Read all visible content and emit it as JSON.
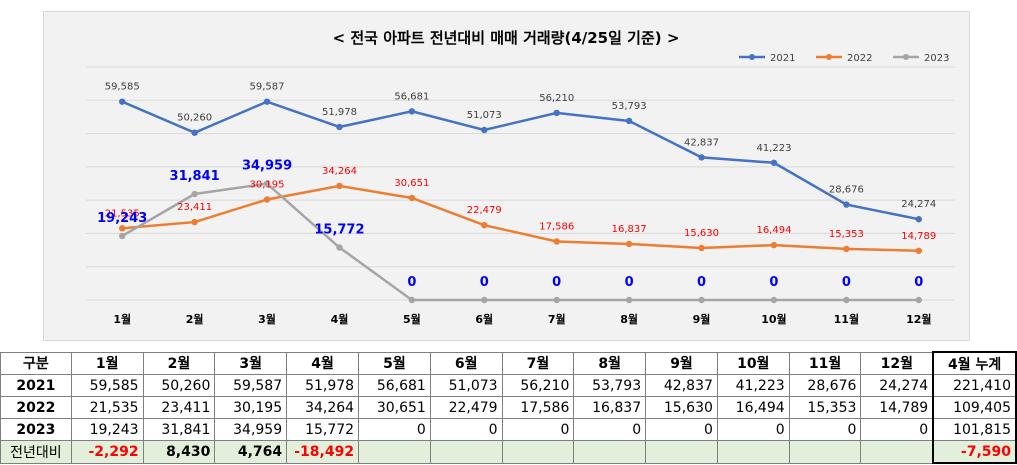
{
  "chart_data": {
    "type": "line",
    "title": "< 전국 아파트 전년대비 매매 거래량(4/25일 기준) >",
    "categories": [
      "1월",
      "2월",
      "3월",
      "4월",
      "5월",
      "6월",
      "7월",
      "8월",
      "9월",
      "10월",
      "11월",
      "12월"
    ],
    "series": [
      {
        "name": "2021",
        "color": "#4472c4",
        "values": [
          59585,
          50260,
          59587,
          51978,
          56681,
          51073,
          56210,
          53793,
          42837,
          41223,
          28676,
          24274
        ],
        "labels": [
          "59,585",
          "50,260",
          "59,587",
          "51,978",
          "56,681",
          "51,073",
          "56,210",
          "53,793",
          "42,837",
          "41,223",
          "28,676",
          "24,274"
        ]
      },
      {
        "name": "2022",
        "color": "#ed7d31",
        "values": [
          21535,
          23411,
          30195,
          34264,
          30651,
          22479,
          17586,
          16837,
          15630,
          16494,
          15353,
          14789
        ],
        "labels": [
          "21,535",
          "23,411",
          "30,195",
          "34,264",
          "30,651",
          "22,479",
          "17,586",
          "16,837",
          "15,630",
          "16,494",
          "15,353",
          "14,789"
        ]
      },
      {
        "name": "2023",
        "color": "#a5a5a5",
        "values": [
          19243,
          31841,
          34959,
          15772,
          0,
          0,
          0,
          0,
          0,
          0,
          0,
          0
        ],
        "labels": [
          "19,243",
          "31,841",
          "34,959",
          "15,772",
          "0",
          "0",
          "0",
          "0",
          "0",
          "0",
          "0",
          "0"
        ]
      }
    ],
    "ylim": [
      0,
      70000
    ],
    "grid": true,
    "legend_position": "top-right"
  },
  "table": {
    "header": [
      "구분",
      "1월",
      "2월",
      "3월",
      "4월",
      "5월",
      "6월",
      "7월",
      "8월",
      "9월",
      "10월",
      "11월",
      "12월",
      "4월 누계"
    ],
    "rows": [
      {
        "label": "2021",
        "cells": [
          "59,585",
          "50,260",
          "59,587",
          "51,978",
          "56,681",
          "51,073",
          "56,210",
          "53,793",
          "42,837",
          "41,223",
          "28,676",
          "24,274",
          "221,410"
        ]
      },
      {
        "label": "2022",
        "cells": [
          "21,535",
          "23,411",
          "30,195",
          "34,264",
          "30,651",
          "22,479",
          "17,586",
          "16,837",
          "15,630",
          "16,494",
          "15,353",
          "14,789",
          "109,405"
        ]
      },
      {
        "label": "2023",
        "cells": [
          "19,243",
          "31,841",
          "34,959",
          "15,772",
          "0",
          "0",
          "0",
          "0",
          "0",
          "0",
          "0",
          "0",
          "101,815"
        ]
      }
    ],
    "diff": {
      "label": "전년대비",
      "cells": [
        "-2,292",
        "8,430",
        "4,764",
        "-18,492",
        "",
        "",
        "",
        "",
        "",
        "",
        "",
        "",
        "-7,590"
      ]
    }
  }
}
